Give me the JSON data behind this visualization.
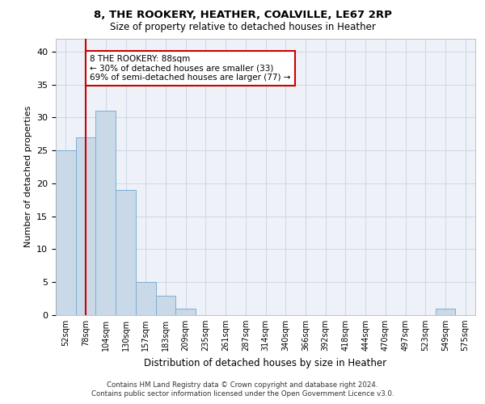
{
  "title1": "8, THE ROOKERY, HEATHER, COALVILLE, LE67 2RP",
  "title2": "Size of property relative to detached houses in Heather",
  "xlabel": "Distribution of detached houses by size in Heather",
  "ylabel": "Number of detached properties",
  "categories": [
    "52sqm",
    "78sqm",
    "104sqm",
    "130sqm",
    "157sqm",
    "183sqm",
    "209sqm",
    "235sqm",
    "261sqm",
    "287sqm",
    "314sqm",
    "340sqm",
    "366sqm",
    "392sqm",
    "418sqm",
    "444sqm",
    "470sqm",
    "497sqm",
    "523sqm",
    "549sqm",
    "575sqm"
  ],
  "values": [
    25,
    27,
    31,
    19,
    5,
    3,
    1,
    0,
    0,
    0,
    0,
    0,
    0,
    0,
    0,
    0,
    0,
    0,
    0,
    1,
    0
  ],
  "bar_color": "#c9d9e8",
  "bar_edge_color": "#7bafd4",
  "ylim": [
    0,
    42
  ],
  "yticks": [
    0,
    5,
    10,
    15,
    20,
    25,
    30,
    35,
    40
  ],
  "property_line_x": 1,
  "annotation_line1": "8 THE ROOKERY: 88sqm",
  "annotation_line2": "← 30% of detached houses are smaller (33)",
  "annotation_line3": "69% of semi-detached houses are larger (77) →",
  "annotation_box_color": "#ffffff",
  "annotation_box_edge": "#cc0000",
  "footer1": "Contains HM Land Registry data © Crown copyright and database right 2024.",
  "footer2": "Contains public sector information licensed under the Open Government Licence v3.0.",
  "grid_color": "#d0d8e8",
  "red_line_color": "#cc0000",
  "background_color": "#eef2f8"
}
